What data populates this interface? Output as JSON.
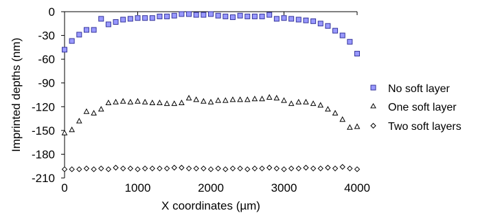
{
  "chart_data": {
    "type": "scatter",
    "xlabel": "X coordinates (µm)",
    "ylabel": "Imprinted depths (nm)",
    "xlim": [
      0,
      4000
    ],
    "ylim": [
      -210,
      0
    ],
    "x_ticks": [
      "0",
      "1000",
      "2000",
      "3000",
      "4000"
    ],
    "y_ticks": [
      "0",
      "-30",
      "-60",
      "-90",
      "-120",
      "-150",
      "-180",
      "-210"
    ],
    "x_tick_values": [
      0,
      1000,
      2000,
      3000,
      4000
    ],
    "y_tick_values": [
      0,
      -30,
      -60,
      -90,
      -120,
      -150,
      -180,
      -210
    ],
    "grid": false,
    "legend_position": "right",
    "series": [
      {
        "name": "No soft layer",
        "marker": "square",
        "color": "#9999ff",
        "stroke": "#333399",
        "x": [
          0,
          100,
          200,
          300,
          400,
          500,
          600,
          700,
          800,
          900,
          1000,
          1100,
          1200,
          1300,
          1400,
          1500,
          1600,
          1700,
          1800,
          1900,
          2000,
          2100,
          2200,
          2300,
          2400,
          2500,
          2600,
          2700,
          2800,
          2900,
          3000,
          3100,
          3200,
          3300,
          3400,
          3500,
          3600,
          3700,
          3800,
          3900,
          4000
        ],
        "y": [
          -48,
          -37,
          -29,
          -23,
          -23,
          -9,
          -16,
          -13,
          -10,
          -9,
          -8,
          -8,
          -8,
          -6,
          -6,
          -5,
          -3,
          -3,
          -4,
          -4,
          -3,
          -5,
          -6,
          -7,
          -5,
          -6,
          -6,
          -6,
          -4,
          -9,
          -8,
          -9,
          -10,
          -11,
          -12,
          -15,
          -18,
          -24,
          -30,
          -38,
          -53
        ]
      },
      {
        "name": "One soft layer",
        "marker": "triangle",
        "color": "#ffffff",
        "stroke": "#000000",
        "x": [
          0,
          100,
          200,
          300,
          400,
          500,
          600,
          700,
          800,
          900,
          1000,
          1100,
          1200,
          1300,
          1400,
          1500,
          1600,
          1700,
          1800,
          1900,
          2000,
          2100,
          2200,
          2300,
          2400,
          2500,
          2600,
          2700,
          2800,
          2900,
          3000,
          3100,
          3200,
          3300,
          3400,
          3500,
          3600,
          3700,
          3800,
          3900,
          4000
        ],
        "y": [
          -153,
          -149,
          -138,
          -126,
          -128,
          -123,
          -115,
          -114,
          -113,
          -114,
          -113,
          -114,
          -115,
          -115,
          -116,
          -116,
          -115,
          -109,
          -111,
          -113,
          -114,
          -112,
          -112,
          -111,
          -111,
          -111,
          -110,
          -110,
          -108,
          -109,
          -112,
          -116,
          -114,
          -114,
          -116,
          -118,
          -123,
          -128,
          -136,
          -146,
          -145
        ]
      },
      {
        "name": "Two soft layers",
        "marker": "diamond",
        "color": "#ffffff",
        "stroke": "#000000",
        "x": [
          0,
          100,
          200,
          300,
          400,
          500,
          600,
          700,
          800,
          900,
          1000,
          1100,
          1200,
          1300,
          1400,
          1500,
          1600,
          1700,
          1800,
          1900,
          2000,
          2100,
          2200,
          2300,
          2400,
          2500,
          2600,
          2700,
          2800,
          2900,
          3000,
          3100,
          3200,
          3300,
          3400,
          3500,
          3600,
          3700,
          3800,
          3900,
          4000
        ],
        "y": [
          -199,
          -199,
          -199,
          -198,
          -199,
          -198,
          -199,
          -197,
          -198,
          -198,
          -199,
          -198,
          -198,
          -198,
          -198,
          -197,
          -197,
          -198,
          -198,
          -198,
          -199,
          -198,
          -199,
          -198,
          -198,
          -199,
          -198,
          -198,
          -197,
          -198,
          -199,
          -198,
          -198,
          -197,
          -198,
          -198,
          -197,
          -198,
          -196,
          -198,
          -199
        ]
      }
    ]
  }
}
